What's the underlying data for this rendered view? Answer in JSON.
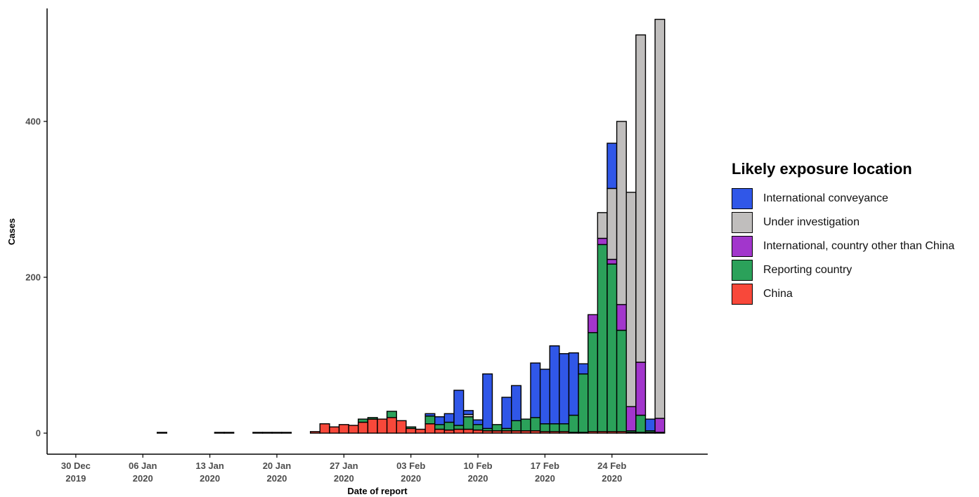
{
  "chart_data": {
    "type": "bar",
    "stacked": true,
    "x_dates": [
      "2019-12-31",
      "2020-01-01",
      "2020-01-02",
      "2020-01-03",
      "2020-01-04",
      "2020-01-05",
      "2020-01-06",
      "2020-01-07",
      "2020-01-08",
      "2020-01-09",
      "2020-01-10",
      "2020-01-11",
      "2020-01-12",
      "2020-01-13",
      "2020-01-14",
      "2020-01-15",
      "2020-01-16",
      "2020-01-17",
      "2020-01-18",
      "2020-01-19",
      "2020-01-20",
      "2020-01-21",
      "2020-01-22",
      "2020-01-23",
      "2020-01-24",
      "2020-01-25",
      "2020-01-26",
      "2020-01-27",
      "2020-01-28",
      "2020-01-29",
      "2020-01-30",
      "2020-01-31",
      "2020-02-01",
      "2020-02-02",
      "2020-02-03",
      "2020-02-04",
      "2020-02-05",
      "2020-02-06",
      "2020-02-07",
      "2020-02-08",
      "2020-02-09",
      "2020-02-10",
      "2020-02-11",
      "2020-02-12",
      "2020-02-13",
      "2020-02-14",
      "2020-02-15",
      "2020-02-16",
      "2020-02-17",
      "2020-02-18",
      "2020-02-19",
      "2020-02-20",
      "2020-02-21",
      "2020-02-22",
      "2020-02-23",
      "2020-02-24",
      "2020-02-25",
      "2020-02-26",
      "2020-02-27",
      "2020-02-28",
      "2020-02-29"
    ],
    "series": [
      {
        "name": "China",
        "color": "#f8483a",
        "values": [
          0,
          0,
          0,
          0,
          0,
          0,
          0,
          0,
          1,
          0,
          0,
          0,
          0,
          0,
          1,
          1,
          0,
          0,
          1,
          1,
          1,
          1,
          0,
          0,
          2,
          12,
          8,
          11,
          10,
          14,
          18,
          18,
          20,
          16,
          6,
          5,
          12,
          5,
          4,
          5,
          5,
          4,
          3,
          3,
          3,
          3,
          3,
          3,
          2,
          2,
          2,
          1,
          1,
          2,
          2,
          2,
          2,
          1,
          1,
          1,
          1
        ]
      },
      {
        "name": "Reporting country",
        "color": "#2ba15a",
        "values": [
          0,
          0,
          0,
          0,
          0,
          0,
          0,
          0,
          0,
          0,
          0,
          0,
          0,
          0,
          0,
          0,
          0,
          0,
          0,
          0,
          0,
          0,
          0,
          0,
          0,
          0,
          0,
          0,
          0,
          4,
          2,
          0,
          8,
          0,
          2,
          0,
          10,
          6,
          10,
          5,
          16,
          7,
          3,
          8,
          3,
          13,
          15,
          17,
          10,
          10,
          10,
          22,
          75,
          127,
          240,
          215,
          130,
          2,
          22,
          2,
          0
        ]
      },
      {
        "name": "International, country other than China",
        "color": "#a236cc",
        "values": [
          0,
          0,
          0,
          0,
          0,
          0,
          0,
          0,
          0,
          0,
          0,
          0,
          0,
          0,
          0,
          0,
          0,
          0,
          0,
          0,
          0,
          0,
          0,
          0,
          0,
          0,
          0,
          0,
          0,
          0,
          0,
          0,
          0,
          0,
          0,
          0,
          0,
          0,
          0,
          0,
          0,
          0,
          0,
          0,
          0,
          0,
          0,
          0,
          0,
          0,
          0,
          0,
          0,
          23,
          8,
          6,
          33,
          31,
          68,
          0,
          18
        ]
      },
      {
        "name": "Under investigation",
        "color": "#c0bebd",
        "values": [
          0,
          0,
          0,
          0,
          0,
          0,
          0,
          0,
          0,
          0,
          0,
          0,
          0,
          0,
          0,
          0,
          0,
          0,
          0,
          0,
          0,
          0,
          0,
          0,
          0,
          0,
          0,
          0,
          0,
          0,
          0,
          0,
          0,
          0,
          0,
          0,
          0,
          0,
          0,
          0,
          3,
          0,
          0,
          0,
          0,
          0,
          0,
          0,
          0,
          0,
          0,
          0,
          0,
          0,
          33,
          91,
          235,
          275,
          420,
          0,
          512
        ]
      },
      {
        "name": "International conveyance",
        "color": "#3057e8",
        "values": [
          0,
          0,
          0,
          0,
          0,
          0,
          0,
          0,
          0,
          0,
          0,
          0,
          0,
          0,
          0,
          0,
          0,
          0,
          0,
          0,
          0,
          0,
          0,
          0,
          0,
          0,
          0,
          0,
          0,
          0,
          0,
          0,
          0,
          0,
          0,
          0,
          3,
          10,
          11,
          45,
          5,
          6,
          70,
          0,
          40,
          45,
          0,
          70,
          70,
          100,
          90,
          80,
          13,
          0,
          0,
          58,
          0,
          0,
          0,
          15,
          0
        ]
      }
    ],
    "x_ticks": [
      {
        "date": "2019-12-30",
        "line1": "30 Dec",
        "line2": "2019"
      },
      {
        "date": "2020-01-06",
        "line1": "06 Jan",
        "line2": "2020"
      },
      {
        "date": "2020-01-13",
        "line1": "13 Jan",
        "line2": "2020"
      },
      {
        "date": "2020-01-20",
        "line1": "20 Jan",
        "line2": "2020"
      },
      {
        "date": "2020-01-27",
        "line1": "27 Jan",
        "line2": "2020"
      },
      {
        "date": "2020-02-03",
        "line1": "03 Feb",
        "line2": "2020"
      },
      {
        "date": "2020-02-10",
        "line1": "10 Feb",
        "line2": "2020"
      },
      {
        "date": "2020-02-17",
        "line1": "17 Feb",
        "line2": "2020"
      },
      {
        "date": "2020-02-24",
        "line1": "24 Feb",
        "line2": "2020"
      }
    ],
    "y_ticks": [
      0,
      200,
      400
    ],
    "ylim": [
      -27,
      545
    ],
    "xlim": [
      "2019-12-27",
      "2020-03-05"
    ],
    "xlabel": "Date of report",
    "ylabel": "Cases",
    "grid": false,
    "legend": {
      "title": "Likely exposure location",
      "position": "right",
      "order": [
        "International conveyance",
        "Under investigation",
        "International, country other than China",
        "Reporting country",
        "China"
      ]
    }
  }
}
